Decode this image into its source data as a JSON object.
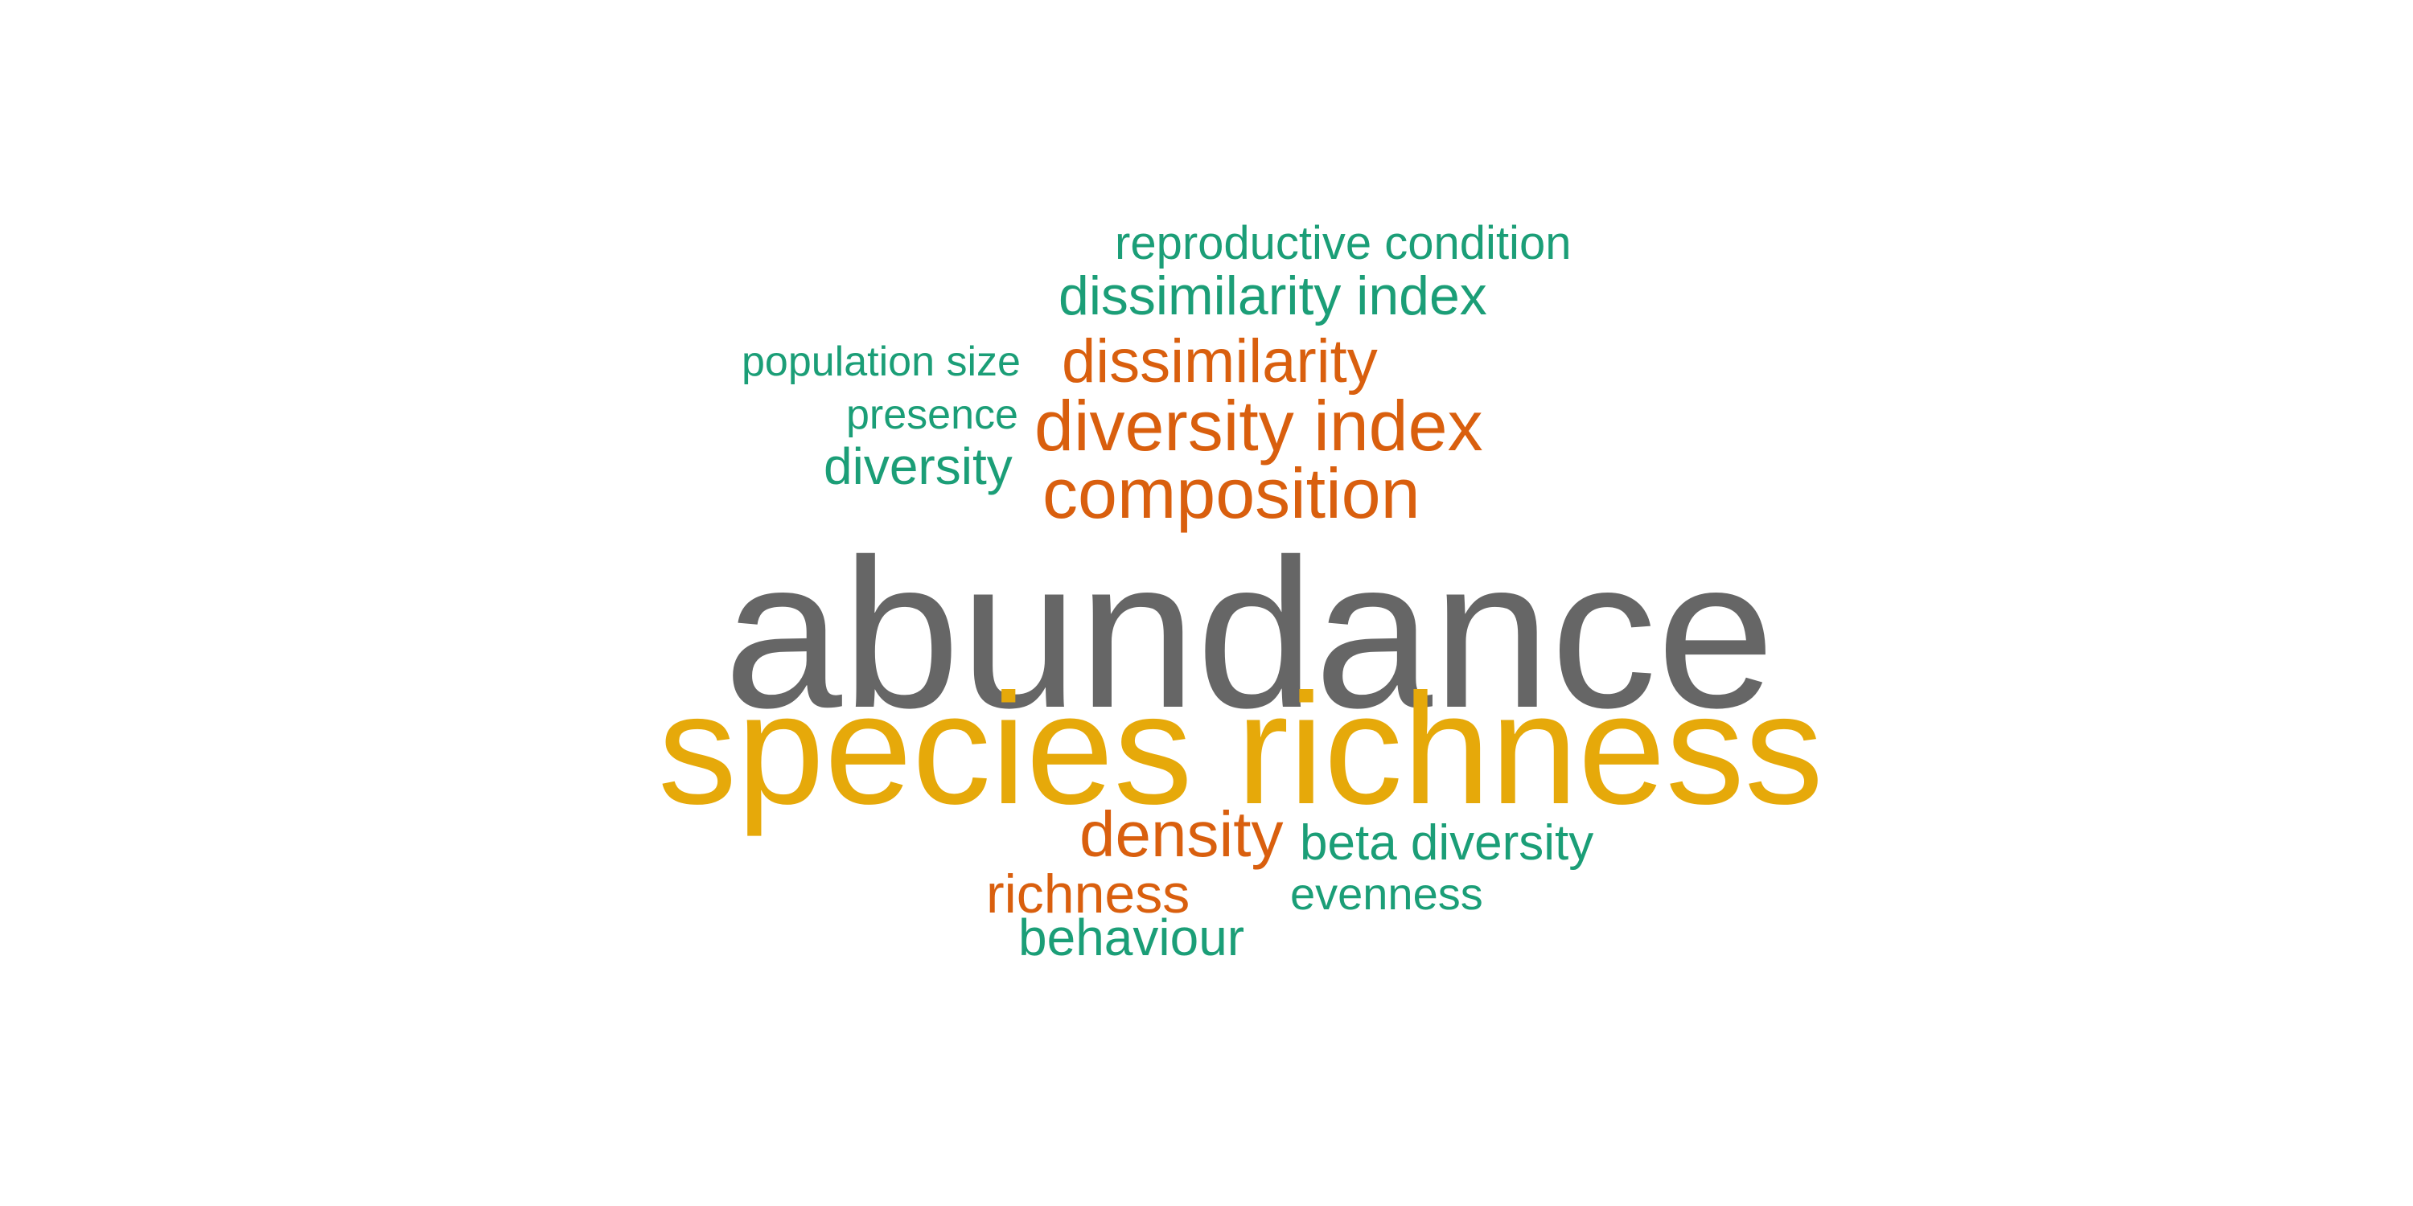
{
  "word_cloud": {
    "colors": {
      "grey": "#666666",
      "gold": "#E6A90A",
      "orange": "#D95F0E",
      "green": "#1B9E77"
    },
    "words": {
      "abundance": "abundance",
      "species_richness": "species richness",
      "composition": "composition",
      "diversity_index": "diversity index",
      "dissimilarity": "dissimilarity",
      "dissimilarity_index": "dissimilarity index",
      "reproductive_condition": "reproductive condition",
      "population_size": "population size",
      "presence": "presence",
      "diversity": "diversity",
      "density": "density",
      "beta_diversity": "beta diversity",
      "richness": "richness",
      "evenness": "evenness",
      "behaviour": "behaviour"
    }
  }
}
